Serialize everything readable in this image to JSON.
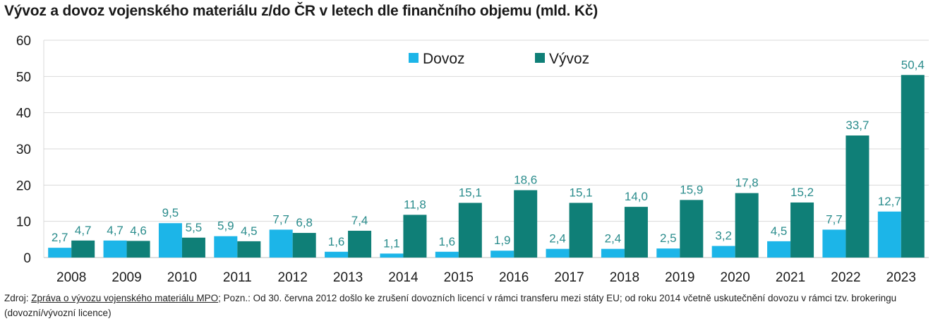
{
  "title": "Vývoz a dovoz vojenského materiálu z/do ČR v letech dle finančního objemu (mld. Kč)",
  "footnote": {
    "prefix": "Zdroj: ",
    "link_text": "Zpráva o vývozu vojenského materiálu MPO",
    "rest": "; Pozn.: Od 30. června 2012 došlo ke zrušení dovozních licencí v rámci transferu mezi státy EU; od roku 2014 včetně uskutečnění dovozu v rámci tzv. brokeringu (dovozní/vývozní licence)"
  },
  "colors": {
    "dovoz": "#1cb5e8",
    "vyvoz": "#0f7f77",
    "label": "#2a8c8c",
    "grid": "#d9d9d9"
  },
  "chart_data": {
    "type": "bar",
    "categories": [
      "2008",
      "2009",
      "2010",
      "2011",
      "2012",
      "2013",
      "2014",
      "2015",
      "2016",
      "2017",
      "2018",
      "2019",
      "2020",
      "2021",
      "2022",
      "2023"
    ],
    "series": [
      {
        "name": "Dovoz",
        "values": [
          2.7,
          4.7,
          9.5,
          5.9,
          7.7,
          1.6,
          1.1,
          1.6,
          1.9,
          2.4,
          2.4,
          2.5,
          3.2,
          4.5,
          7.7,
          12.7
        ],
        "labels": [
          "2,7",
          "4,7",
          "9,5",
          "5,9",
          "7,7",
          "1,6",
          "1,1",
          "1,6",
          "1,9",
          "2,4",
          "2,4",
          "2,5",
          "3,2",
          "4,5",
          "7,7",
          "12,7"
        ]
      },
      {
        "name": "Vývoz",
        "values": [
          4.7,
          4.6,
          5.5,
          4.5,
          6.8,
          7.4,
          11.8,
          15.1,
          18.6,
          15.1,
          14.0,
          15.9,
          17.8,
          15.2,
          33.7,
          50.4
        ],
        "labels": [
          "4,7",
          "4,6",
          "5,5",
          "4,5",
          "6,8",
          "7,4",
          "11,8",
          "15,1",
          "18,6",
          "15,1",
          "14,0",
          "15,9",
          "17,8",
          "15,2",
          "33,7",
          "50,4"
        ]
      }
    ],
    "yticks": [
      "0",
      "10",
      "20",
      "30",
      "40",
      "50",
      "60"
    ],
    "ylim": [
      0,
      60
    ],
    "legend_position": "top-center",
    "grid": true
  }
}
